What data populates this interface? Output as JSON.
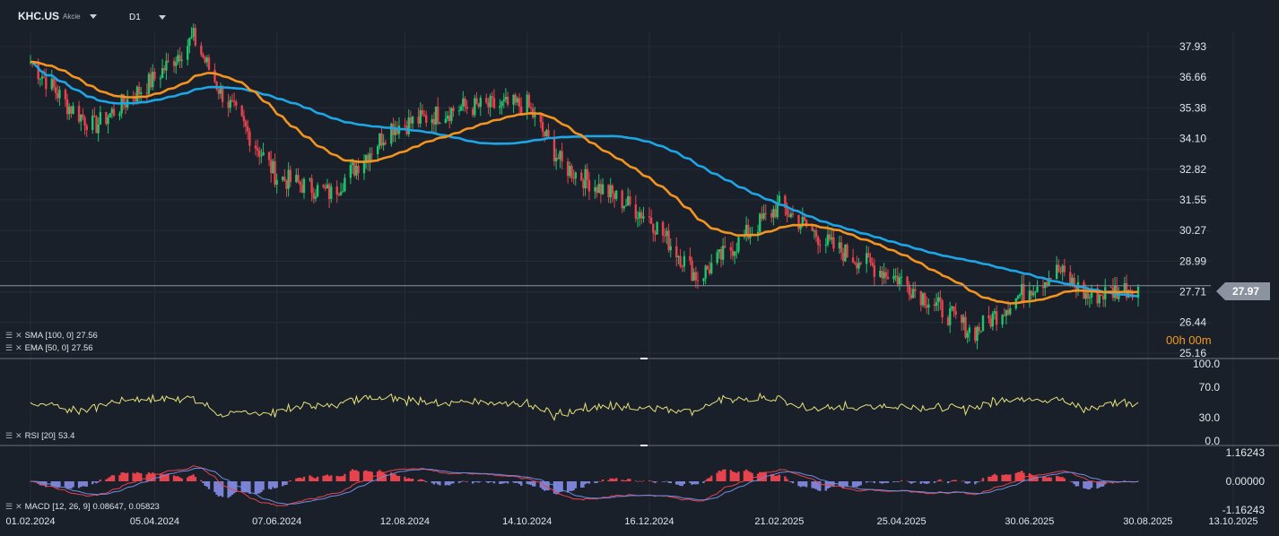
{
  "header": {
    "symbol": "KHC.US",
    "asset_type": "Akcie",
    "timeframe": "D1"
  },
  "price_panel": {
    "last_price": "27.97",
    "countdown": "00h 00m",
    "price_ticks": [
      "37.93",
      "36.66",
      "35.38",
      "34.10",
      "32.82",
      "31.55",
      "30.27",
      "28.99",
      "27.71",
      "26.44",
      "25.16"
    ],
    "indicators": [
      {
        "label": "SMA [100, 0]",
        "value": "27.56",
        "color": "#1ea5e6"
      },
      {
        "label": "EMA [50, 0]",
        "value": "27.56",
        "color": "#f39320"
      }
    ],
    "colors": {
      "up": "#21c36b",
      "down": "#e8434d",
      "sma": "#1ea5e6",
      "ema": "#f39320"
    }
  },
  "rsi_panel": {
    "label": "RSI [20]",
    "value": "53.4",
    "ticks": [
      "100.0",
      "70.0",
      "30.0",
      "0.0"
    ],
    "color": "#e8e27a"
  },
  "macd_panel": {
    "label": "MACD [12, 26, 9]",
    "value1": "0.08647,",
    "value2": "0.05823",
    "ticks": [
      "1.16243",
      "0.00000",
      "-1.16243"
    ],
    "colors": {
      "pos": "#e8434d",
      "neg": "#7c83d6",
      "line1": "#e8434d",
      "line2": "#6f8de0"
    }
  },
  "x_axis": {
    "labels": [
      "01.02.2024",
      "05.04.2024",
      "07.06.2024",
      "12.08.2024",
      "14.10.2024",
      "16.12.2024",
      "21.02.2025",
      "25.04.2025",
      "30.06.2025",
      "30.08.2025",
      "13.10.2025"
    ]
  },
  "chart_data": {
    "type": "candlestick",
    "symbol": "KHC.US",
    "timeframe": "D1",
    "price_axis": [
      25.16,
      37.93
    ],
    "series_close_keypoints": [
      {
        "date": "01.02.2024",
        "close": 37.3
      },
      {
        "date": "20.02.2024",
        "close": 35.5
      },
      {
        "date": "05.03.2024",
        "close": 34.6
      },
      {
        "date": "05.04.2024",
        "close": 36.6
      },
      {
        "date": "25.04.2024",
        "close": 38.3
      },
      {
        "date": "08.05.2024",
        "close": 36.2
      },
      {
        "date": "07.06.2024",
        "close": 32.5
      },
      {
        "date": "05.07.2024",
        "close": 31.8
      },
      {
        "date": "25.07.2024",
        "close": 33.6
      },
      {
        "date": "05.08.2024",
        "close": 34.6
      },
      {
        "date": "12.08.2024",
        "close": 34.7
      },
      {
        "date": "10.09.2024",
        "close": 35.4
      },
      {
        "date": "14.10.2024",
        "close": 35.5
      },
      {
        "date": "01.11.2024",
        "close": 33.0
      },
      {
        "date": "16.12.2024",
        "close": 30.8
      },
      {
        "date": "10.01.2025",
        "close": 28.3
      },
      {
        "date": "21.02.2025",
        "close": 31.3
      },
      {
        "date": "20.03.2025",
        "close": 29.6
      },
      {
        "date": "25.04.2025",
        "close": 28.2
      },
      {
        "date": "01.06.2025",
        "close": 26.0
      },
      {
        "date": "30.06.2025",
        "close": 27.9
      },
      {
        "date": "15.07.2025",
        "close": 28.6
      },
      {
        "date": "30.07.2025",
        "close": 27.5
      },
      {
        "date": "25.08.2025",
        "close": 27.97
      }
    ],
    "indicators": {
      "SMA_100_last": 27.56,
      "EMA_50_last": 27.56,
      "RSI_20_last": 53.4,
      "MACD": [
        0.08647,
        0.05823
      ]
    },
    "grid": true
  }
}
